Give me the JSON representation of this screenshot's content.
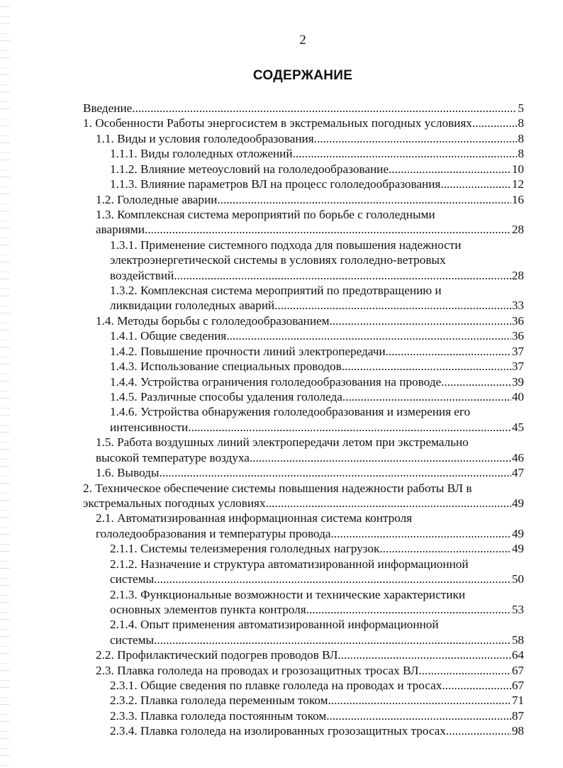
{
  "page_number": "2",
  "heading": "СОДЕРЖАНИЕ",
  "entries": [
    {
      "level": 0,
      "lines": [
        "Введение"
      ],
      "page": "5"
    },
    {
      "level": 0,
      "lines": [
        "1. Особенности Работы энергосистем в экстремальных погодных условиях "
      ],
      "page": "8"
    },
    {
      "level": 1,
      "lines": [
        "1.1. Виды и условия гололедообразования"
      ],
      "page": "8"
    },
    {
      "level": 2,
      "lines": [
        "1.1.1. Виды гололедных отложений "
      ],
      "page": "8"
    },
    {
      "level": 2,
      "lines": [
        "1.1.2. Влияние метеоусловий на гололедообразование "
      ],
      "page": "10"
    },
    {
      "level": 2,
      "lines": [
        "1.1.3. Влияние параметров ВЛ на процесс  гололедообразования "
      ],
      "page": "12"
    },
    {
      "level": 1,
      "lines": [
        "1.2. Гололедные аварии "
      ],
      "page": "16"
    },
    {
      "level": 1,
      "lines": [
        "1.3. Комплексная система мероприятий по борьбе с гололедными",
        "авариями"
      ],
      "page": "28"
    },
    {
      "level": 2,
      "lines": [
        "1.3.1. Применение системного подхода для повышения надежности",
        "электроэнергетической системы в условиях гололедно-ветровых",
        "воздействий"
      ],
      "page": "28"
    },
    {
      "level": 2,
      "lines": [
        "1.3.2. Комплексная система мероприятий по предотвращению и",
        "ликвидации гололедных аварий "
      ],
      "page": "33"
    },
    {
      "level": 1,
      "lines": [
        "1.4. Методы борьбы с гололедообразованием "
      ],
      "page": "36"
    },
    {
      "level": 2,
      "lines": [
        "1.4.1. Общие сведения "
      ],
      "page": "36"
    },
    {
      "level": 2,
      "lines": [
        "1.4.2. Повышение прочности линий электропередачи"
      ],
      "page": "37"
    },
    {
      "level": 2,
      "lines": [
        "1.4.3. Использование специальных проводов "
      ],
      "page": "37"
    },
    {
      "level": 2,
      "lines": [
        "1.4.4. Устройства ограничения гололедообразования на проводе"
      ],
      "page": "39"
    },
    {
      "level": 2,
      "lines": [
        "1.4.5. Различные способы удаления гололеда"
      ],
      "page": "40"
    },
    {
      "level": 2,
      "lines": [
        "1.4.6. Устройства обнаружения гололедообразования  и измерения его",
        "интенсивности "
      ],
      "page": "45"
    },
    {
      "level": 1,
      "lines": [
        "1.5. Работа воздушных линий электропередачи летом при экстремально",
        "высокой температуре воздуха"
      ],
      "page": "46"
    },
    {
      "level": 1,
      "lines": [
        "1.6. Выводы "
      ],
      "page": "47"
    },
    {
      "level": 0,
      "lines": [
        "2. Техническое обеспечение системы повышения надежности работы ВЛ в",
        "экстремальных погодных условиях "
      ],
      "page": "49"
    },
    {
      "level": 1,
      "lines": [
        "2.1. Автоматизированная информационная система контроля",
        "гололедообразования и температуры провода"
      ],
      "page": "49"
    },
    {
      "level": 2,
      "lines": [
        "2.1.1. Системы телеизмерения гололедных нагрузок "
      ],
      "page": "49"
    },
    {
      "level": 2,
      "lines": [
        "2.1.2. Назначение и структура автоматизированной информационной",
        "системы "
      ],
      "page": "50"
    },
    {
      "level": 2,
      "lines": [
        "2.1.3. Функциональные возможности и технические характеристики",
        "основных элементов пункта контроля"
      ],
      "page": "53"
    },
    {
      "level": 2,
      "lines": [
        "2.1.4. Опыт применения автоматизированной информационной",
        "системы "
      ],
      "page": "58"
    },
    {
      "level": 1,
      "lines": [
        "2.2. Профилактический подогрев проводов ВЛ"
      ],
      "page": "64"
    },
    {
      "level": 1,
      "lines": [
        "2.3. Плавка гололеда на проводах и грозозащитных тросах ВЛ"
      ],
      "page": "67"
    },
    {
      "level": 2,
      "lines": [
        "2.3.1. Общие сведения по плавке гололеда на проводах и тросах"
      ],
      "page": "67"
    },
    {
      "level": 2,
      "lines": [
        "2.3.2. Плавка гололеда переменным током "
      ],
      "page": "71"
    },
    {
      "level": 2,
      "lines": [
        "2.3.3. Плавка гололеда постоянным током"
      ],
      "page": "87"
    },
    {
      "level": 2,
      "lines": [
        "2.3.4. Плавка гололеда на изолированных грозозащитных тросах"
      ],
      "page": "98"
    }
  ]
}
